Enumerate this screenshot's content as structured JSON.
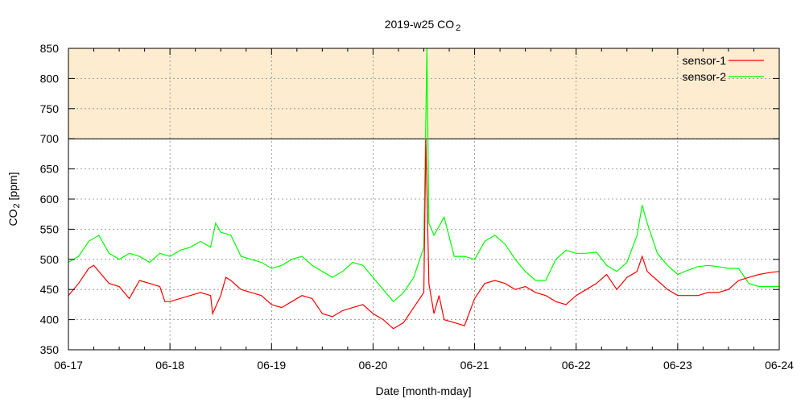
{
  "chart_data": {
    "type": "line",
    "title": "2019-w25 CO",
    "title_sub": "2",
    "xlabel": "Date [month-mday]",
    "ylabel": "CO",
    "ylabel_sub": "2",
    "ylabel_unit": " [ppm]",
    "xlim": [
      0,
      7
    ],
    "ylim": [
      350,
      850
    ],
    "x_ticks": [
      0,
      1,
      2,
      3,
      4,
      5,
      6,
      7
    ],
    "x_tick_labels": [
      "06-17",
      "06-18",
      "06-19",
      "06-20",
      "06-21",
      "06-22",
      "06-23",
      "06-24"
    ],
    "y_ticks": [
      350,
      400,
      450,
      500,
      550,
      600,
      650,
      700,
      750,
      800,
      850
    ],
    "y_tick_labels": [
      "350",
      "400",
      "450",
      "500",
      "550",
      "600",
      "650",
      "700",
      "750",
      "800",
      "850"
    ],
    "grid": true,
    "threshold": {
      "from": 700,
      "to": 850,
      "color": "#fdecd0"
    },
    "legend_position": "top-right",
    "series": [
      {
        "name": "sensor-1",
        "color": "#ff0000",
        "x": [
          0,
          0.1,
          0.2,
          0.25,
          0.3,
          0.4,
          0.5,
          0.6,
          0.7,
          0.8,
          0.9,
          0.95,
          1,
          1.1,
          1.2,
          1.3,
          1.4,
          1.42,
          1.5,
          1.55,
          1.6,
          1.7,
          1.8,
          1.9,
          2,
          2.1,
          2.2,
          2.3,
          2.4,
          2.5,
          2.6,
          2.7,
          2.8,
          2.9,
          3,
          3.1,
          3.2,
          3.3,
          3.4,
          3.5,
          3.52,
          3.55,
          3.6,
          3.65,
          3.7,
          3.8,
          3.9,
          4,
          4.1,
          4.2,
          4.3,
          4.4,
          4.5,
          4.6,
          4.7,
          4.8,
          4.9,
          5,
          5.1,
          5.2,
          5.3,
          5.4,
          5.5,
          5.6,
          5.65,
          5.7,
          5.8,
          5.9,
          6,
          6.1,
          6.2,
          6.3,
          6.4,
          6.5,
          6.6,
          6.7,
          6.8,
          6.9,
          7
        ],
        "values": [
          440,
          460,
          485,
          490,
          480,
          460,
          455,
          435,
          465,
          460,
          455,
          430,
          430,
          435,
          440,
          445,
          440,
          410,
          440,
          470,
          465,
          450,
          445,
          440,
          425,
          420,
          430,
          440,
          435,
          410,
          405,
          415,
          420,
          425,
          410,
          400,
          385,
          395,
          420,
          445,
          700,
          460,
          410,
          440,
          400,
          395,
          390,
          435,
          460,
          465,
          460,
          450,
          455,
          445,
          440,
          430,
          425,
          440,
          450,
          460,
          475,
          450,
          470,
          480,
          505,
          480,
          465,
          450,
          440,
          440,
          440,
          445,
          445,
          450,
          465,
          470,
          475,
          478,
          480
        ]
      },
      {
        "name": "sensor-2",
        "color": "#00ff00",
        "x": [
          0,
          0.1,
          0.2,
          0.3,
          0.4,
          0.5,
          0.6,
          0.7,
          0.8,
          0.9,
          1,
          1.1,
          1.2,
          1.3,
          1.4,
          1.45,
          1.5,
          1.6,
          1.7,
          1.8,
          1.9,
          2,
          2.1,
          2.2,
          2.3,
          2.4,
          2.5,
          2.6,
          2.7,
          2.8,
          2.9,
          3,
          3.1,
          3.2,
          3.3,
          3.4,
          3.5,
          3.52,
          3.53,
          3.55,
          3.6,
          3.7,
          3.8,
          3.9,
          4,
          4.1,
          4.2,
          4.3,
          4.4,
          4.5,
          4.6,
          4.7,
          4.8,
          4.9,
          5,
          5.1,
          5.2,
          5.3,
          5.4,
          5.5,
          5.6,
          5.65,
          5.7,
          5.8,
          5.9,
          6,
          6.1,
          6.2,
          6.3,
          6.4,
          6.5,
          6.6,
          6.7,
          6.8,
          6.9,
          7
        ],
        "values": [
          495,
          505,
          530,
          540,
          510,
          500,
          510,
          505,
          495,
          510,
          505,
          515,
          520,
          530,
          520,
          560,
          545,
          540,
          505,
          500,
          495,
          485,
          490,
          500,
          505,
          490,
          480,
          470,
          480,
          495,
          490,
          470,
          450,
          430,
          445,
          470,
          520,
          735,
          850,
          560,
          540,
          570,
          505,
          505,
          500,
          530,
          540,
          525,
          500,
          480,
          465,
          465,
          500,
          515,
          510,
          510,
          512,
          490,
          480,
          495,
          540,
          590,
          560,
          510,
          490,
          475,
          482,
          488,
          490,
          488,
          485,
          485,
          460,
          455,
          455,
          455
        ]
      }
    ]
  }
}
